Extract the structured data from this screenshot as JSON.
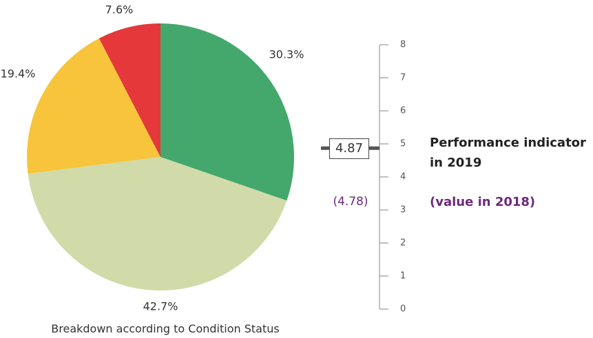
{
  "chart_data": [
    {
      "type": "pie",
      "title": "Breakdown according to Condition Status",
      "slices": [
        {
          "label": "30.3%",
          "value": 30.3,
          "color": "#44a86c"
        },
        {
          "label": "42.7%",
          "value": 42.7,
          "color": "#d1dba9"
        },
        {
          "label": "19.4%",
          "value": 19.4,
          "color": "#f7c43b"
        },
        {
          "label": "7.6%",
          "value": 7.6,
          "color": "#e4383a"
        }
      ]
    },
    {
      "type": "gauge",
      "title": "Performance indicator in 2019",
      "value": 4.87,
      "value_label": "4.87",
      "previous_value": 4.78,
      "previous_label": "(4.78)",
      "previous_caption": "(value in 2018)",
      "ylim": [
        0,
        8
      ],
      "ticks": [
        "0",
        "1",
        "2",
        "3",
        "4",
        "5",
        "6",
        "7",
        "8"
      ]
    }
  ],
  "colors": {
    "previous_value": "#6b2a7a",
    "marker": "#555555"
  }
}
